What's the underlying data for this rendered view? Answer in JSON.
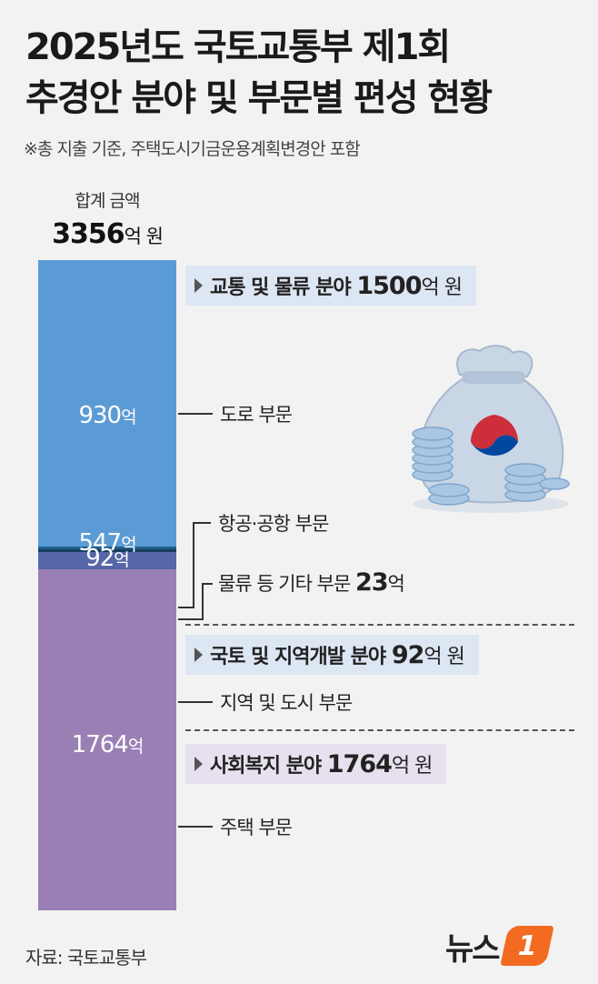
{
  "title_line1": "2025년도 국토교통부 제1회",
  "title_line2": "추경안 분야 및 부문별 편성 현황",
  "note": "※총 지출 기준, 주택도시기금운용계획변경안 포함",
  "total": {
    "label": "합계 금액",
    "value": "3356",
    "unit": "억 원"
  },
  "chart_data": {
    "type": "bar",
    "stacked": true,
    "unit": "억",
    "total": 3356,
    "segments": [
      {
        "category": "교통 및 물류 분야",
        "sector": "도로 부문",
        "value": 930,
        "label": "930억",
        "color": "#5b9bd5"
      },
      {
        "category": "교통 및 물류 분야",
        "sector": "항공·공항 부문",
        "value": 547,
        "label": "547억",
        "color": "#5b9bd5"
      },
      {
        "category": "교통 및 물류 분야",
        "sector": "물류 등 기타 부문",
        "value": 23,
        "label": "23억",
        "color": "#1f5f8b"
      },
      {
        "category": "국토 및 지역개발 분야",
        "sector": "지역 및 도시 부문",
        "value": 92,
        "label": "92억",
        "color": "#5766a8"
      },
      {
        "category": "사회복지 분야",
        "sector": "주택 부문",
        "value": 1764,
        "label": "1764억",
        "color": "#9a7fb5"
      }
    ]
  },
  "categories": {
    "transport": {
      "name": "교통 및 물류 분야 ",
      "value": "1500",
      "unit": "억 원"
    },
    "land": {
      "name": "국토 및 지역개발 분야 ",
      "value": "92",
      "unit": "억 원"
    },
    "welfare": {
      "name": "사회복지 분야 ",
      "value": "1764",
      "unit": "억 원"
    }
  },
  "sectors": {
    "road": "도로 부문",
    "aviation": "항공·공항 부문",
    "logistics": "물류 등 기타 부문 ",
    "logistics_value": "23",
    "logistics_unit": "억",
    "regional": "지역 및 도시 부문",
    "housing": "주택 부문"
  },
  "source": "자료: 국토교통부",
  "logo": {
    "text": "뉴스",
    "mark": "1"
  },
  "illustration": "money-bag-coins-icon"
}
